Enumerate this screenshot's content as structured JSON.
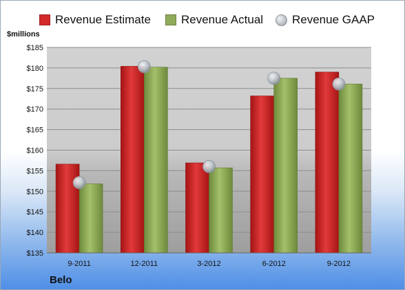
{
  "header": {
    "unit_label": "$millions"
  },
  "footer": {
    "company": "Belo"
  },
  "colors": {
    "estimate": "#d42a2a",
    "actual": "#8fab5a",
    "gaap": "#b9bfc6",
    "plot_bg": "#cfcfcf"
  },
  "chart_data": {
    "type": "bar",
    "title": "",
    "xlabel": "",
    "ylabel": "$millions",
    "categories": [
      "9-2011",
      "12-2011",
      "3-2012",
      "6-2012",
      "9-2012"
    ],
    "series": [
      {
        "name": "Revenue Estimate",
        "kind": "bar",
        "values": [
          156.6,
          180.4,
          156.9,
          173.2,
          179.0
        ]
      },
      {
        "name": "Revenue Actual",
        "kind": "bar",
        "values": [
          151.8,
          180.2,
          155.7,
          177.5,
          176.1
        ]
      },
      {
        "name": "Revenue GAAP",
        "kind": "marker",
        "values": [
          152.1,
          180.3,
          156.0,
          177.5,
          176.1
        ]
      }
    ],
    "ylim": [
      135,
      185
    ],
    "yticks": [
      "$135",
      "$140",
      "$145",
      "$150",
      "$155",
      "$160",
      "$165",
      "$170",
      "$175",
      "$180",
      "$185"
    ],
    "grid": true,
    "legend_position": "top"
  }
}
